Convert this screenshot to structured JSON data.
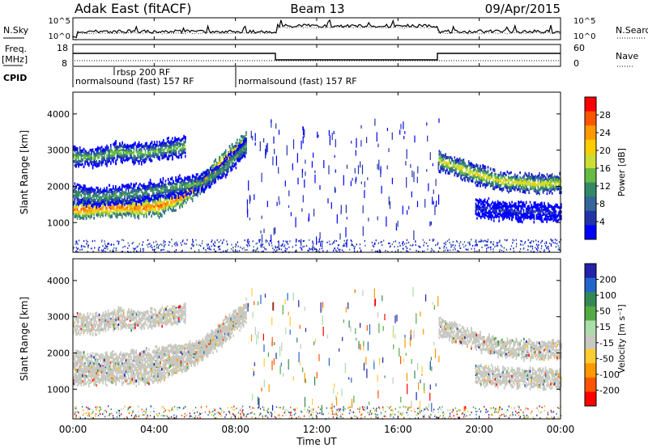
{
  "header": {
    "title": "Adak East (fitACF)",
    "beam": "Beam 13",
    "date": "09/Apr/2015"
  },
  "noise": {
    "left_label": "N.Sky",
    "right_label": "N.Search",
    "left_ticks": [
      "10^5",
      "10^0"
    ],
    "right_ticks": [
      "10^5",
      "10^0"
    ]
  },
  "freq": {
    "left_label": "Freq.",
    "left_unit": "[MHz]",
    "right_label": "Nave",
    "left_ticks": [
      "18",
      "8"
    ],
    "right_ticks": [
      "60",
      "0"
    ]
  },
  "cpid": {
    "label": "CPID",
    "segments": [
      "normalsound (fast) 157 RF",
      "rbsp 200 RF",
      "normalsound (fast) 157 RF"
    ]
  },
  "xaxis": {
    "label": "Time UT",
    "ticks": [
      "00:00",
      "04:00",
      "08:00",
      "12:00",
      "16:00",
      "20:00",
      "00:00"
    ]
  },
  "power_panel": {
    "ylabel": "Slant Range [km]",
    "yticks": [
      "4000",
      "3000",
      "2000",
      "1000"
    ],
    "cbar_label": "Power [dB]",
    "cbar_ticks": [
      "28",
      "24",
      "20",
      "16",
      "12",
      "8",
      "4"
    ],
    "cbar_colors": [
      "#ff0000",
      "#ff5500",
      "#ff9900",
      "#ffcc00",
      "#ccdd33",
      "#66bb44",
      "#338866",
      "#336699",
      "#2233aa",
      "#0000ff"
    ]
  },
  "velocity_panel": {
    "ylabel": "Slant Range [km]",
    "yticks": [
      "4000",
      "3000",
      "2000",
      "1000"
    ],
    "cbar_label": "Velocity [m s⁻¹]",
    "cbar_ticks": [
      "200",
      "100",
      "50",
      "15",
      "-15",
      "-50",
      "-100",
      "-200"
    ],
    "cbar_colors": [
      "#2222aa",
      "#2266cc",
      "#338855",
      "#55aa44",
      "#aaddaa",
      "#c8c8c0",
      "#ffcc33",
      "#ff9900",
      "#ff5500",
      "#ff0000"
    ]
  },
  "chart_data": [
    {
      "type": "heatmap",
      "title": "Adak East (fitACF) Beam 13 09/Apr/2015",
      "xlabel": "Time UT",
      "ylabel": "Slant Range [km]",
      "xlim": [
        0,
        24
      ],
      "ylim": [
        180,
        4600
      ],
      "colorbar": {
        "label": "Power [dB]",
        "ticks": [
          4,
          8,
          12,
          16,
          20,
          24,
          28
        ]
      },
      "features": [
        {
          "name": "band_lower",
          "t_start": 0,
          "t_end": 8.5,
          "range_center_km": [
            1350,
            1380,
            1420,
            1400,
            1450,
            1700,
            2100,
            2700,
            3200
          ],
          "power_db": 26
        },
        {
          "name": "band_middle",
          "t_start": 0,
          "t_end": 8.5,
          "range_center_km": [
            1800,
            1700,
            1750,
            1800,
            1900,
            2000,
            2100,
            2500,
            3100
          ],
          "power_db": 14
        },
        {
          "name": "band_upper",
          "t_start": 0,
          "t_end": 5.5,
          "range_center_km": [
            2800,
            2800,
            2950,
            2900,
            3000,
            3100
          ],
          "power_db": 16
        },
        {
          "name": "band_evening_upper",
          "t_start": 18.0,
          "t_end": 24,
          "range_center_km": [
            2700,
            2500,
            2300,
            2150,
            2100,
            2050,
            2100
          ],
          "power_db": 20
        },
        {
          "name": "band_evening_lower",
          "t_start": 19.8,
          "t_end": 24,
          "range_center_km": [
            1400,
            1350,
            1300,
            1300,
            1250
          ],
          "power_db": 6
        }
      ]
    },
    {
      "type": "heatmap",
      "title": "Adak East (fitACF) Beam 13 09/Apr/2015",
      "xlabel": "Time UT",
      "ylabel": "Slant Range [km]",
      "xlim": [
        0,
        24
      ],
      "ylim": [
        180,
        4600
      ],
      "colorbar": {
        "label": "Velocity [m s⁻¹]",
        "ticks": [
          -200,
          -100,
          -50,
          -15,
          15,
          50,
          100,
          200
        ]
      },
      "features": [
        {
          "name": "ground_scatter_lower",
          "t_start": 0,
          "t_end": 8.5,
          "velocity_ms": 0
        },
        {
          "name": "ground_scatter_upper",
          "t_start": 0,
          "t_end": 6.0,
          "velocity_ms": 0
        },
        {
          "name": "ground_scatter_evening",
          "t_start": 18.0,
          "t_end": 24,
          "velocity_ms": 0
        }
      ]
    }
  ]
}
